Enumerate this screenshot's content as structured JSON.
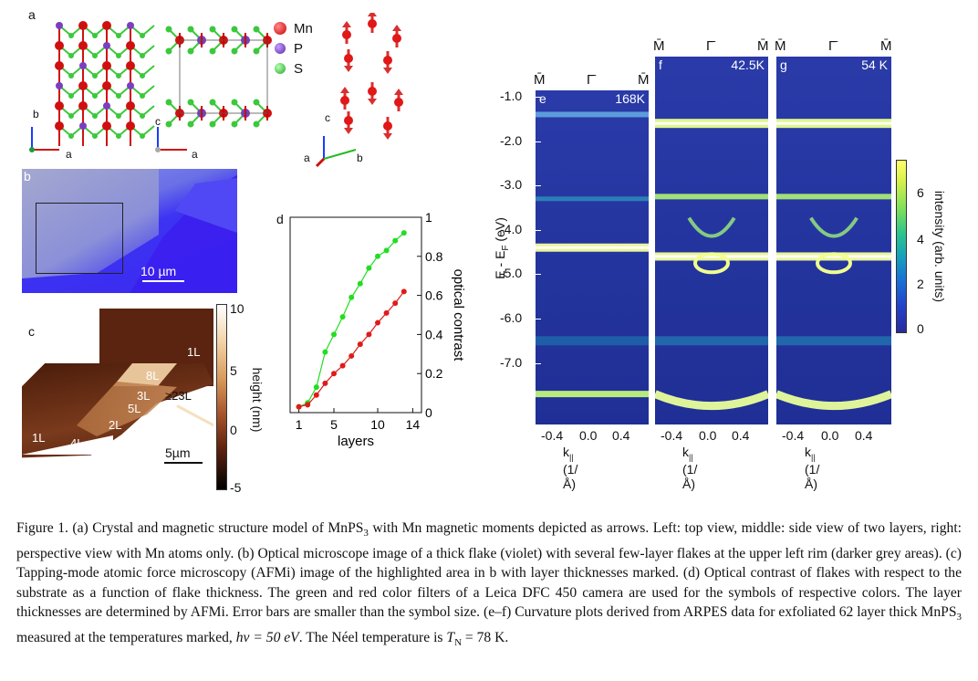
{
  "panel_a": {
    "letter": "a",
    "legend": [
      {
        "label": "Mn",
        "color": "#d01010"
      },
      {
        "label": "P",
        "color": "#7a3fc0"
      },
      {
        "label": "S",
        "color": "#3cc83c"
      }
    ],
    "axes_top": {
      "vertical": "b",
      "horizontal": "a"
    },
    "axes_side": {
      "vertical": "c",
      "horizontal": "a"
    },
    "axes_persp": {
      "vertical": "c",
      "left": "a",
      "right": "b"
    }
  },
  "panel_b": {
    "letter": "b",
    "scale": "10 µm"
  },
  "panel_c": {
    "letter": "c",
    "scale": "5µm",
    "layer_labels": [
      "1L",
      "8L",
      "≥23L",
      "3L",
      "5L",
      "2L",
      "1L",
      "4L"
    ],
    "colorbar": {
      "label": "height (nm)",
      "ticks": [
        "10",
        "5",
        "0",
        "-5"
      ]
    }
  },
  "panel_d": {
    "letter": "d",
    "chart_data": {
      "type": "line",
      "xlabel": "layers",
      "ylabel": "optical contrast",
      "xlim": [
        0,
        15
      ],
      "ylim": [
        0,
        1
      ],
      "xticks": [
        "1",
        "5",
        "10",
        "14"
      ],
      "yticks": [
        "0",
        "0.2",
        "0.4",
        "0.6",
        "0.8",
        "1"
      ],
      "series": [
        {
          "color": "#22dd22",
          "x": [
            1,
            2,
            3,
            4,
            5,
            6,
            7,
            8,
            9,
            10,
            11,
            12,
            13
          ],
          "y": [
            0.03,
            0.05,
            0.13,
            0.31,
            0.4,
            0.49,
            0.59,
            0.66,
            0.74,
            0.8,
            0.83,
            0.88,
            0.92
          ]
        },
        {
          "color": "#e01a1a",
          "x": [
            1,
            2,
            3,
            4,
            5,
            6,
            7,
            8,
            9,
            10,
            11,
            12,
            13
          ],
          "y": [
            0.03,
            0.04,
            0.09,
            0.15,
            0.2,
            0.24,
            0.29,
            0.35,
            0.4,
            0.46,
            0.51,
            0.56,
            0.62
          ]
        }
      ]
    }
  },
  "panels_ef_g": {
    "ylabel": "E - E",
    "ylabel_sub": "F",
    "ylabel_unit": " (eV)",
    "yticks": [
      "-1.0",
      "-2.0",
      "-3.0",
      "-4.0",
      "-5.0",
      "-6.0",
      "-7.0"
    ],
    "xlabel": "k",
    "xlabel_sub": "||",
    "xlabel_unit": " (1/Å)",
    "xticks": [
      "-0.4",
      "0.0",
      "0.4"
    ],
    "kpoints": [
      "M̄",
      "Γ̄",
      "M̄"
    ],
    "panels": [
      {
        "letter": "e",
        "temp": "168K"
      },
      {
        "letter": "f",
        "temp": "42.5K"
      },
      {
        "letter": "g",
        "temp": "54 K"
      }
    ],
    "colorbar": {
      "label": "intensity (arb. units)",
      "ticks": [
        "6",
        "4",
        "2",
        "0"
      ]
    }
  },
  "caption": {
    "line": "Figure 1.   (a) Crystal and magnetic structure model of MnPS",
    "sub3": "3",
    "part2": " with Mn magnetic moments depicted as arrows. Left: top view, middle: side view of two layers, right: perspective view with Mn atoms only. (b) Optical microscope image of a thick flake (violet) with several few-layer flakes at the upper left rim (darker grey areas). (c) Tapping-mode atomic force microscopy (AFMi) image of the highlighted area in b with layer thicknesses marked. (d) Optical contrast of flakes with respect to the substrate as a function of flake thickness. The green and red color filters of a Leica DFC 450 camera are used for the symbols of respective colors. The layer thicknesses are determined by AFMi. Error bars are smaller than the symbol size. (e–f) Curvature plots derived from ARPES data for exfoliated 62 layer thick MnPS",
    "sub3b": "3",
    "part3": " measured at the temperatures marked, ",
    "hv": "hν = 50 eV",
    "part4": ". The Néel temperature is ",
    "tn": "T",
    "tn_sub": "N",
    "tn_val": " = 78 K."
  }
}
